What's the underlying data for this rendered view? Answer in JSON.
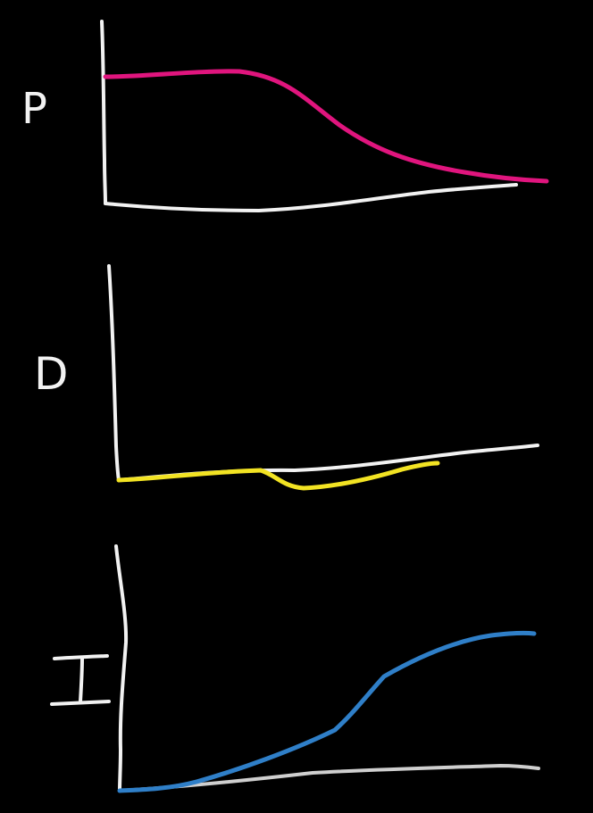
{
  "panels": [
    {
      "id": "p",
      "label": "P",
      "curve_color": "#e0157e"
    },
    {
      "id": "d",
      "label": "D",
      "curve_color": "#f2e323"
    },
    {
      "id": "i",
      "label": "I",
      "curve_color": "#2f7fc8"
    }
  ],
  "colors": {
    "background": "#000000",
    "axes": "#f2f2f2",
    "baseline_i": "#cfcfcf"
  }
}
